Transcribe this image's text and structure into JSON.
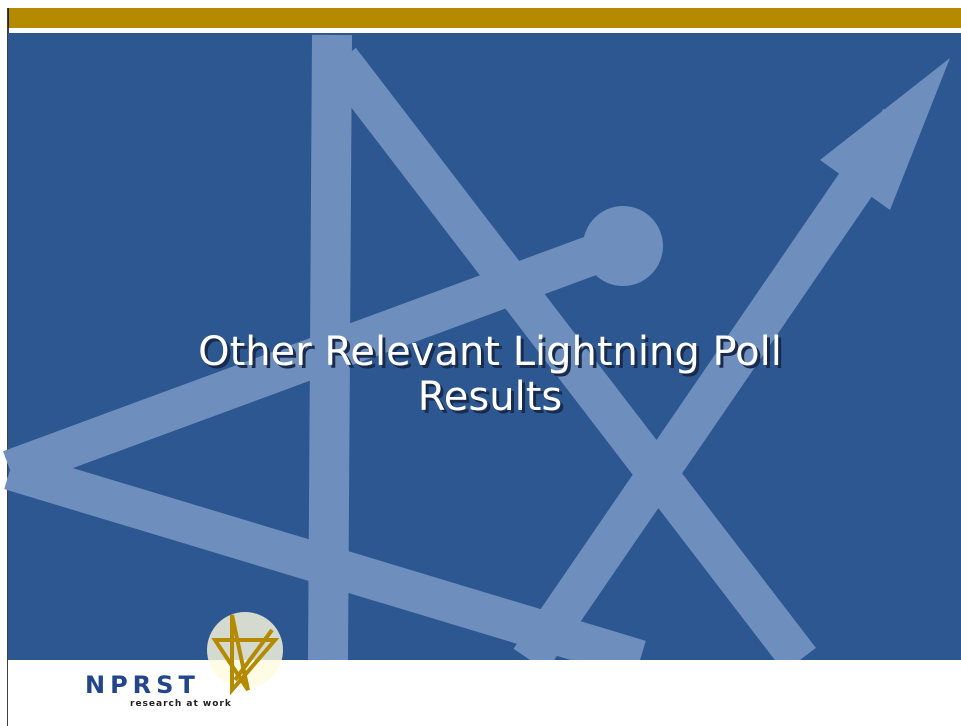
{
  "slide": {
    "title_lines": [
      "Other Relevant Lightning Poll",
      "Results"
    ],
    "logo": {
      "name": "NPRST",
      "tagline": "research at work"
    }
  }
}
